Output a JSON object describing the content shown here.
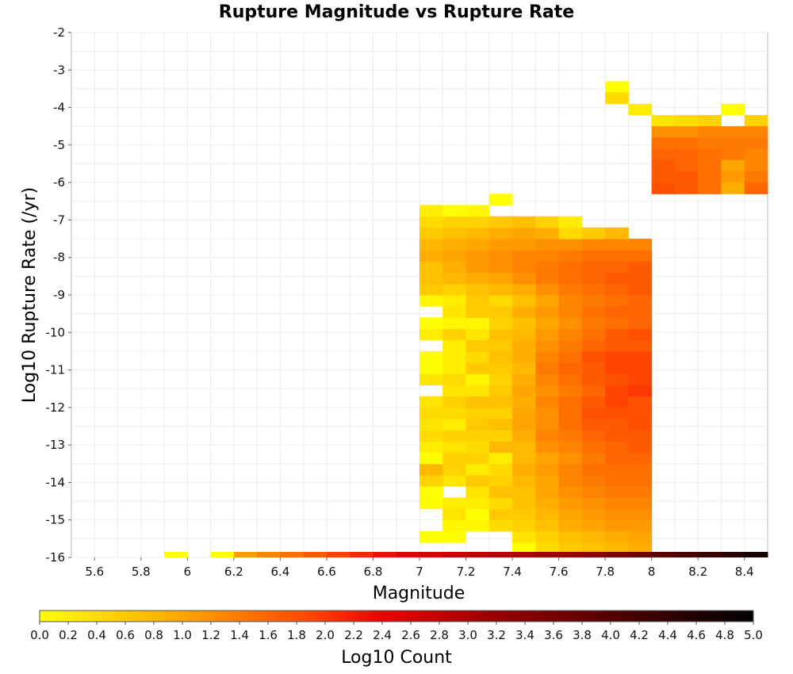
{
  "chart_data": {
    "type": "heatmap",
    "title": "Rupture Magnitude vs Rupture Rate",
    "xlabel": "Magnitude",
    "ylabel": "Log10 Rupture Rate (/yr)",
    "colorbar_label": "Log10 Count",
    "xlim": [
      5.5,
      8.5
    ],
    "ylim": [
      -16,
      -2
    ],
    "x_ticks": [
      "5.6",
      "5.8",
      "6",
      "6.2",
      "6.4",
      "6.6",
      "6.8",
      "7",
      "7.2",
      "7.4",
      "7.6",
      "7.8",
      "8",
      "8.2",
      "8.4"
    ],
    "y_ticks": [
      "-2",
      "-3",
      "-4",
      "-5",
      "-6",
      "-7",
      "-8",
      "-9",
      "-10",
      "-11",
      "-12",
      "-13",
      "-14",
      "-15",
      "-16"
    ],
    "colorbar_ticks": [
      "0.0",
      "0.2",
      "0.4",
      "0.6",
      "0.8",
      "1.0",
      "1.2",
      "1.4",
      "1.6",
      "1.8",
      "2.0",
      "2.2",
      "2.4",
      "2.6",
      "2.8",
      "3.0",
      "3.2",
      "3.4",
      "3.6",
      "3.8",
      "4.0",
      "4.2",
      "4.4",
      "4.6",
      "4.8",
      "5.0"
    ],
    "colorbar_range": [
      0,
      5
    ],
    "colormap": [
      "#ffff00",
      "#ffa500",
      "#ff4500",
      "#ee0000",
      "#a00000",
      "#000000"
    ],
    "grid": true,
    "x_bin_width": 0.1,
    "y_bin_height": 0.3,
    "floor_row": {
      "y_value": -16,
      "counts": [
        null,
        null,
        null,
        null,
        0.0,
        null,
        0.0,
        1.1,
        1.3,
        1.5,
        1.7,
        1.9,
        2.1,
        2.3,
        2.5,
        2.6,
        2.7,
        2.8,
        2.9,
        3.0,
        3.1,
        3.2,
        3.3,
        3.5,
        3.7,
        3.9,
        4.1,
        4.3,
        4.5,
        4.7
      ]
    },
    "heatmap": {
      "x_start": 7.0,
      "y_start": -15.9,
      "rows": [
        [
          null,
          null,
          null,
          null,
          0.0,
          0.4,
          0.6,
          0.7,
          0.8,
          0.9
        ],
        [
          0.0,
          0.0,
          null,
          null,
          0.3,
          0.5,
          0.7,
          0.8,
          0.9,
          1.0
        ],
        [
          null,
          0.1,
          0.1,
          0.4,
          0.5,
          0.7,
          0.9,
          1.0,
          1.1,
          1.1
        ],
        [
          null,
          0.3,
          0.0,
          0.6,
          0.6,
          0.8,
          1.0,
          1.1,
          1.2,
          1.2
        ],
        [
          0.0,
          0.2,
          0.2,
          0.4,
          0.7,
          0.9,
          1.1,
          1.2,
          1.3,
          1.3
        ],
        [
          0.0,
          null,
          0.3,
          0.7,
          0.7,
          1.0,
          1.2,
          1.3,
          1.4,
          1.4
        ],
        [
          0.5,
          0.3,
          0.6,
          0.5,
          0.8,
          1.0,
          1.3,
          1.4,
          1.5,
          1.5
        ],
        [
          0.8,
          0.5,
          0.2,
          0.4,
          0.9,
          1.1,
          1.3,
          1.5,
          1.5,
          1.5
        ],
        [
          0.0,
          0.5,
          0.5,
          0.2,
          0.8,
          1.0,
          1.2,
          1.4,
          1.6,
          1.6
        ],
        [
          0.2,
          0.3,
          0.4,
          0.8,
          0.8,
          1.2,
          1.3,
          1.5,
          1.6,
          1.7
        ],
        [
          0.4,
          0.5,
          0.5,
          0.5,
          0.9,
          1.3,
          1.4,
          1.6,
          1.7,
          1.7
        ],
        [
          0.3,
          0.2,
          0.6,
          0.7,
          1.0,
          1.2,
          1.5,
          1.7,
          1.7,
          1.8
        ],
        [
          0.4,
          0.4,
          0.5,
          0.5,
          1.0,
          1.2,
          1.5,
          1.8,
          1.8,
          1.8
        ],
        [
          0.3,
          0.5,
          0.7,
          0.7,
          0.9,
          1.3,
          1.5,
          1.7,
          1.9,
          1.8
        ],
        [
          null,
          0.3,
          0.3,
          0.6,
          1.0,
          1.2,
          1.4,
          1.6,
          1.9,
          2.0
        ],
        [
          0.3,
          0.4,
          0.1,
          0.5,
          0.9,
          1.3,
          1.5,
          1.7,
          1.8,
          1.9
        ],
        [
          0.0,
          0.2,
          0.6,
          0.6,
          0.8,
          1.4,
          1.6,
          1.7,
          1.9,
          1.9
        ],
        [
          0.0,
          0.2,
          0.4,
          0.7,
          0.9,
          1.3,
          1.5,
          1.8,
          1.9,
          1.9
        ],
        [
          null,
          0.2,
          0.6,
          0.6,
          0.9,
          1.2,
          1.4,
          1.6,
          1.7,
          1.7
        ],
        [
          0.2,
          0.5,
          0.3,
          0.7,
          0.8,
          1.1,
          1.3,
          1.5,
          1.7,
          1.8
        ],
        [
          0.0,
          0.1,
          0.1,
          0.5,
          0.7,
          1.0,
          1.2,
          1.4,
          1.5,
          1.6
        ],
        [
          null,
          0.3,
          0.6,
          0.6,
          0.9,
          1.1,
          1.3,
          1.5,
          1.6,
          1.6
        ],
        [
          0.1,
          0.2,
          0.6,
          0.4,
          0.7,
          1.0,
          1.3,
          1.4,
          1.5,
          1.6
        ],
        [
          0.6,
          0.5,
          0.7,
          0.8,
          0.9,
          1.2,
          1.4,
          1.5,
          1.6,
          1.7
        ],
        [
          0.7,
          0.8,
          0.9,
          1.0,
          1.2,
          1.4,
          1.5,
          1.6,
          1.7,
          1.7
        ],
        [
          0.7,
          0.9,
          1.1,
          1.2,
          1.3,
          1.4,
          1.5,
          1.6,
          1.6,
          1.7
        ],
        [
          0.9,
          1.0,
          1.1,
          1.2,
          1.3,
          1.3,
          1.4,
          1.5,
          1.5,
          1.5
        ],
        [
          0.8,
          0.9,
          1.0,
          1.1,
          1.1,
          1.2,
          1.2,
          1.3,
          1.3,
          1.3
        ],
        [
          0.6,
          0.7,
          0.8,
          0.9,
          1.0,
          0.9,
          0.4,
          0.6,
          0.8,
          null
        ],
        [
          0.4,
          0.5,
          0.5,
          0.6,
          0.7,
          0.5,
          0.2,
          null,
          null,
          null
        ],
        [
          0.2,
          0.0,
          0.1,
          null,
          null,
          null,
          null,
          null,
          null,
          null
        ],
        [
          null,
          null,
          null,
          0.0,
          null,
          null,
          null,
          null,
          null,
          null
        ]
      ],
      "extra_cells": [
        {
          "x": 8.0,
          "y": -4.5,
          "v": 0.3
        },
        {
          "x": 8.1,
          "y": -4.5,
          "v": 0.4
        },
        {
          "x": 8.2,
          "y": -4.5,
          "v": 0.5
        },
        {
          "x": 8.3,
          "y": -4.2,
          "v": 0.0
        },
        {
          "x": 8.3,
          "y": -4.5,
          "v": null
        },
        {
          "x": 8.4,
          "y": -4.5,
          "v": 0.5
        },
        {
          "x": 7.9,
          "y": -4.2,
          "v": 0.2
        },
        {
          "x": 7.8,
          "y": -3.6,
          "v": 0.0
        },
        {
          "x": 7.8,
          "y": -3.9,
          "v": 0.4
        },
        {
          "x": 8.1,
          "y": -4.8,
          "v": 1.2
        },
        {
          "x": 8.0,
          "y": -4.8,
          "v": 1.2
        },
        {
          "x": 8.2,
          "y": -4.8,
          "v": 1.3
        },
        {
          "x": 8.3,
          "y": -4.8,
          "v": 1.3
        },
        {
          "x": 8.4,
          "y": -4.8,
          "v": 1.3
        },
        {
          "x": 8.0,
          "y": -5.1,
          "v": 1.5
        },
        {
          "x": 8.1,
          "y": -5.1,
          "v": 1.5
        },
        {
          "x": 8.2,
          "y": -5.1,
          "v": 1.4
        },
        {
          "x": 8.3,
          "y": -5.1,
          "v": 1.4
        },
        {
          "x": 8.4,
          "y": -5.1,
          "v": 1.4
        },
        {
          "x": 8.0,
          "y": -5.4,
          "v": 1.6
        },
        {
          "x": 8.1,
          "y": -5.4,
          "v": 1.6
        },
        {
          "x": 8.2,
          "y": -5.4,
          "v": 1.5
        },
        {
          "x": 8.3,
          "y": -5.4,
          "v": 1.4
        },
        {
          "x": 8.4,
          "y": -5.4,
          "v": 1.3
        },
        {
          "x": 8.0,
          "y": -5.7,
          "v": 1.7
        },
        {
          "x": 8.1,
          "y": -5.7,
          "v": 1.6
        },
        {
          "x": 8.2,
          "y": -5.7,
          "v": 1.5
        },
        {
          "x": 8.3,
          "y": -5.7,
          "v": 1.0
        },
        {
          "x": 8.4,
          "y": -5.7,
          "v": 1.3
        },
        {
          "x": 8.0,
          "y": -6.0,
          "v": 1.7
        },
        {
          "x": 8.1,
          "y": -6.0,
          "v": 1.7
        },
        {
          "x": 8.2,
          "y": -6.0,
          "v": 1.5
        },
        {
          "x": 8.3,
          "y": -6.0,
          "v": 1.1
        },
        {
          "x": 8.4,
          "y": -6.0,
          "v": 1.4
        },
        {
          "x": 8.0,
          "y": -6.3,
          "v": 1.8
        },
        {
          "x": 8.1,
          "y": -6.3,
          "v": 1.7
        },
        {
          "x": 8.2,
          "y": -6.3,
          "v": 1.5
        },
        {
          "x": 8.3,
          "y": -6.3,
          "v": 0.9
        },
        {
          "x": 8.4,
          "y": -6.3,
          "v": 1.6
        }
      ]
    }
  }
}
